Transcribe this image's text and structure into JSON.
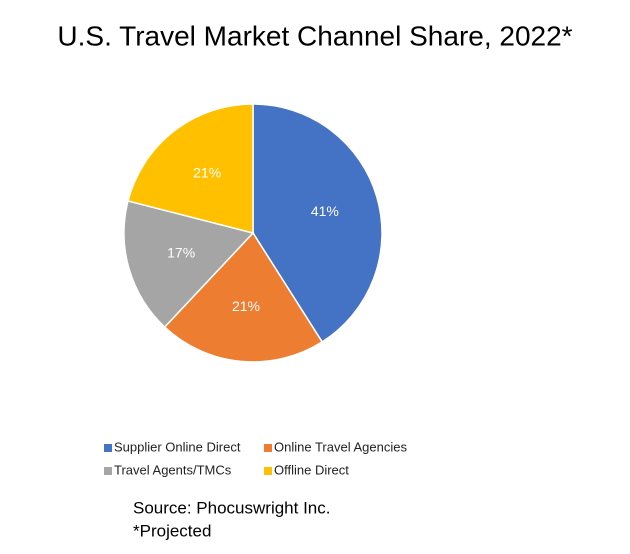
{
  "chart_data": {
    "type": "pie",
    "title": "U.S. Travel Market Channel Share, 2022*",
    "categories": [
      "Supplier Online Direct",
      "Online Travel Agencies",
      "Travel Agents/TMCs",
      "Offline Direct"
    ],
    "values": [
      41,
      21,
      17,
      21
    ],
    "value_labels": [
      "41%",
      "21%",
      "17%",
      "21%"
    ],
    "colors": [
      "#4472c4",
      "#ed7d31",
      "#a5a5a5",
      "#ffc000"
    ],
    "notes": [
      "Source: Phocuswright Inc.",
      "*Projected"
    ]
  }
}
